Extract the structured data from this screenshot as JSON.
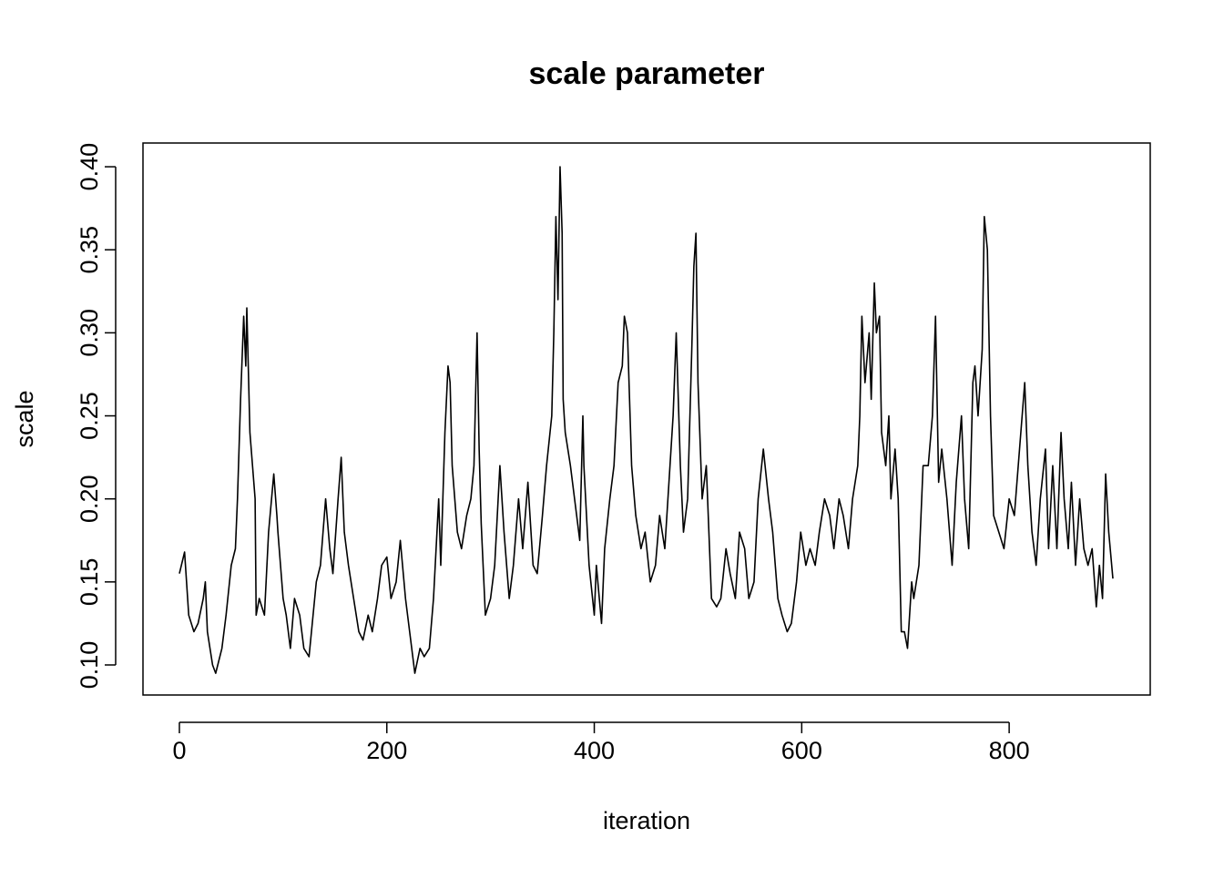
{
  "chart_data": {
    "type": "line",
    "title": "scale parameter",
    "xlabel": "iteration",
    "ylabel": "scale",
    "color": "#000000",
    "x": [
      0,
      5,
      9,
      14,
      18,
      23,
      25,
      27,
      32,
      35,
      41,
      45,
      50,
      54,
      56,
      59,
      62,
      64,
      65,
      68,
      73,
      74,
      77,
      82,
      86,
      91,
      94,
      95,
      100,
      103,
      107,
      111,
      116,
      120,
      125,
      132,
      136,
      141,
      145,
      148,
      153,
      156,
      159,
      163,
      168,
      173,
      177,
      182,
      186,
      191,
      195,
      200,
      204,
      209,
      213,
      218,
      222,
      227,
      232,
      236,
      241,
      245,
      250,
      252,
      256,
      259,
      261,
      263,
      268,
      272,
      277,
      281,
      284,
      287,
      289,
      291,
      295,
      300,
      304,
      309,
      313,
      318,
      322,
      327,
      331,
      336,
      341,
      345,
      350,
      354,
      359,
      361,
      363,
      365,
      367,
      369,
      370,
      372,
      377,
      381,
      386,
      389,
      390,
      395,
      400,
      402,
      407,
      410,
      415,
      419,
      423,
      427,
      429,
      432,
      436,
      440,
      445,
      449,
      454,
      459,
      463,
      468,
      472,
      476,
      479,
      483,
      486,
      490,
      494,
      496,
      498,
      500,
      504,
      508,
      513,
      518,
      522,
      527,
      531,
      536,
      540,
      545,
      549,
      554,
      558,
      563,
      568,
      572,
      577,
      581,
      586,
      590,
      595,
      599,
      604,
      608,
      613,
      617,
      622,
      627,
      631,
      636,
      640,
      645,
      649,
      654,
      656,
      658,
      661,
      665,
      667,
      670,
      672,
      675,
      677,
      681,
      684,
      686,
      690,
      693,
      696,
      699,
      702,
      706,
      708,
      713,
      717,
      722,
      726,
      729,
      732,
      735,
      740,
      745,
      749,
      754,
      757,
      761,
      765,
      767,
      770,
      774,
      776,
      779,
      782,
      785,
      790,
      795,
      800,
      805,
      810,
      815,
      818,
      822,
      826,
      830,
      835,
      838,
      842,
      846,
      850,
      853,
      857,
      860,
      864,
      868,
      872,
      876,
      880,
      884,
      887,
      890,
      893,
      896,
      900
    ],
    "values": [
      0.155,
      0.168,
      0.13,
      0.12,
      0.125,
      0.14,
      0.15,
      0.12,
      0.1,
      0.095,
      0.11,
      0.13,
      0.16,
      0.17,
      0.2,
      0.26,
      0.31,
      0.28,
      0.315,
      0.24,
      0.2,
      0.13,
      0.14,
      0.13,
      0.18,
      0.215,
      0.19,
      0.18,
      0.14,
      0.13,
      0.11,
      0.14,
      0.13,
      0.11,
      0.105,
      0.15,
      0.16,
      0.2,
      0.17,
      0.155,
      0.2,
      0.225,
      0.18,
      0.16,
      0.14,
      0.12,
      0.115,
      0.13,
      0.12,
      0.14,
      0.16,
      0.165,
      0.14,
      0.15,
      0.175,
      0.14,
      0.12,
      0.095,
      0.11,
      0.105,
      0.11,
      0.14,
      0.2,
      0.16,
      0.24,
      0.28,
      0.27,
      0.22,
      0.18,
      0.17,
      0.19,
      0.2,
      0.22,
      0.3,
      0.23,
      0.185,
      0.13,
      0.14,
      0.16,
      0.22,
      0.18,
      0.14,
      0.16,
      0.2,
      0.17,
      0.21,
      0.16,
      0.155,
      0.19,
      0.22,
      0.25,
      0.3,
      0.37,
      0.32,
      0.4,
      0.36,
      0.26,
      0.24,
      0.22,
      0.2,
      0.175,
      0.25,
      0.22,
      0.16,
      0.13,
      0.16,
      0.125,
      0.17,
      0.2,
      0.22,
      0.27,
      0.28,
      0.31,
      0.3,
      0.22,
      0.19,
      0.17,
      0.18,
      0.15,
      0.16,
      0.19,
      0.17,
      0.21,
      0.25,
      0.3,
      0.22,
      0.18,
      0.2,
      0.29,
      0.34,
      0.36,
      0.27,
      0.2,
      0.22,
      0.14,
      0.135,
      0.14,
      0.17,
      0.155,
      0.14,
      0.18,
      0.17,
      0.14,
      0.15,
      0.2,
      0.23,
      0.2,
      0.18,
      0.14,
      0.13,
      0.12,
      0.125,
      0.15,
      0.18,
      0.16,
      0.17,
      0.16,
      0.18,
      0.2,
      0.19,
      0.17,
      0.2,
      0.19,
      0.17,
      0.2,
      0.22,
      0.25,
      0.31,
      0.27,
      0.3,
      0.26,
      0.33,
      0.3,
      0.31,
      0.24,
      0.22,
      0.25,
      0.2,
      0.23,
      0.2,
      0.12,
      0.12,
      0.11,
      0.15,
      0.14,
      0.16,
      0.22,
      0.22,
      0.25,
      0.31,
      0.21,
      0.23,
      0.2,
      0.16,
      0.21,
      0.25,
      0.2,
      0.17,
      0.27,
      0.28,
      0.25,
      0.29,
      0.37,
      0.35,
      0.25,
      0.19,
      0.18,
      0.17,
      0.2,
      0.19,
      0.23,
      0.27,
      0.22,
      0.18,
      0.16,
      0.2,
      0.23,
      0.17,
      0.22,
      0.17,
      0.24,
      0.2,
      0.17,
      0.21,
      0.16,
      0.2,
      0.17,
      0.16,
      0.17,
      0.135,
      0.16,
      0.14,
      0.215,
      0.18,
      0.152
    ],
    "xlim": [
      -35.1,
      936
    ],
    "ylim": [
      0.0819,
      0.4143
    ],
    "xticks": [
      0,
      200,
      400,
      600,
      800
    ],
    "yticks": [
      {
        "value": 0.1,
        "label": "0.10"
      },
      {
        "value": 0.15,
        "label": "0.15"
      },
      {
        "value": 0.2,
        "label": "0.20"
      },
      {
        "value": 0.25,
        "label": "0.25"
      },
      {
        "value": 0.3,
        "label": "0.30"
      },
      {
        "value": 0.35,
        "label": "0.35"
      },
      {
        "value": 0.4,
        "label": "0.40"
      }
    ]
  }
}
